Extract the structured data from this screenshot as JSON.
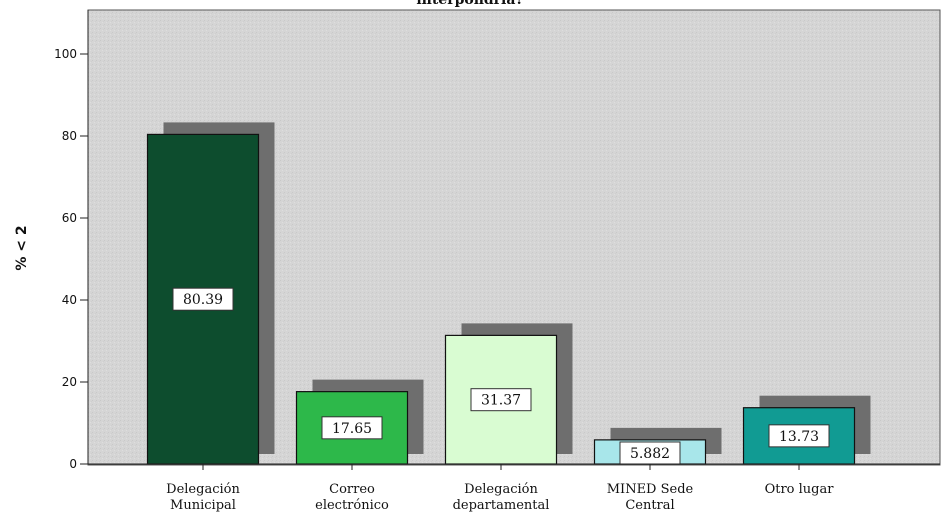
{
  "chart_data": {
    "type": "bar",
    "title": "interpondría?",
    "ylabel": "% < 2",
    "xlabel": "",
    "ylim": [
      0,
      100
    ],
    "yticks": [
      0,
      20,
      40,
      60,
      80,
      100
    ],
    "grid": false,
    "categories": [
      [
        "Delegación",
        "Municipal"
      ],
      [
        "Correo",
        "electrónico"
      ],
      [
        "Delegación",
        "departamental"
      ],
      [
        "MINED Sede",
        "Central"
      ],
      [
        "Otro lugar"
      ]
    ],
    "values": [
      80.39,
      17.65,
      31.37,
      5.882,
      13.73
    ],
    "value_labels": [
      "80.39",
      "17.65",
      "31.37",
      "5.882",
      "13.73"
    ],
    "colors": [
      "#0d4d2e",
      "#2db84a",
      "#d9fcd2",
      "#a8e6ea",
      "#119b93"
    ],
    "plot_background": "#d6d6d6"
  }
}
